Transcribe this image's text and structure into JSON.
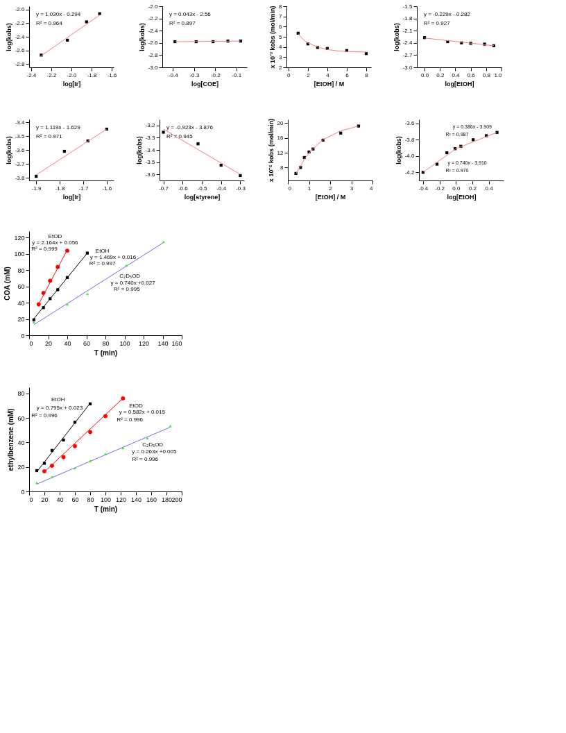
{
  "chart_data": [
    {
      "type": "scatter",
      "xlabel": "log[Ir]",
      "ylabel": "log(kobs)",
      "xlim": [
        -2.42,
        -1.58
      ],
      "ylim": [
        -2.85,
        -1.95
      ],
      "xticks": [
        -2.4,
        -2.2,
        {
          "value": -2,
          "label": "-2.0"
        },
        -1.8,
        -1.6
      ],
      "yticks": [
        -2.8,
        -2.6,
        -2.4,
        -2.2,
        {
          "value": -2,
          "label": "-2.0"
        }
      ],
      "annotations": [
        "y = 1.030x - 0.294",
        "R² = 0.964"
      ],
      "series": [
        {
          "marker": "square",
          "color": "#000000",
          "x": [
            -2.3,
            -2.04,
            -1.85,
            -1.72
          ],
          "values": [
            -2.67,
            -2.45,
            -2.18,
            -2.06
          ]
        },
        {
          "type": "line",
          "color": "#f08080",
          "x": [
            -2.31,
            -1.71
          ],
          "values": [
            -2.69,
            -2.07
          ]
        }
      ]
    },
    {
      "type": "scatter",
      "xlabel": "log[COE]",
      "ylabel": "log(kobs)",
      "xlim": [
        -0.45,
        -0.05
      ],
      "ylim": [
        -3,
        -2
      ],
      "xticks": [
        -0.4,
        -0.3,
        -0.2,
        -0.1
      ],
      "yticks": [
        {
          "value": -3,
          "label": "-3.0"
        },
        -2.8,
        -2.6,
        -2.4,
        -2.2,
        {
          "value": -2,
          "label": "-2.0"
        }
      ],
      "annotations": [
        "y = 0.043x - 2.56",
        "R² = 0.897"
      ],
      "series": [
        {
          "marker": "square",
          "color": "#000000",
          "x": [
            -0.39,
            -0.29,
            -0.21,
            -0.14,
            -0.08
          ],
          "values": [
            -2.58,
            -2.58,
            -2.58,
            -2.57,
            -2.57
          ]
        },
        {
          "type": "line",
          "color": "#f08080",
          "x": [
            -0.39,
            -0.08
          ],
          "values": [
            -2.58,
            -2.57
          ]
        }
      ]
    },
    {
      "type": "scatter",
      "xlabel": "[EtOH] / M",
      "ylabel": "x 10⁻³ kobs (mol/min)",
      "xlim": [
        -0.2,
        8.5
      ],
      "ylim": [
        2,
        8
      ],
      "xticks": [
        0,
        2,
        4,
        6,
        8
      ],
      "yticks": [
        2,
        3,
        4,
        5,
        6,
        7,
        8
      ],
      "series": [
        {
          "marker": "square",
          "color": "#000000",
          "x": [
            1,
            2,
            3,
            4,
            6,
            8
          ],
          "values": [
            5.35,
            4.3,
            3.95,
            3.85,
            3.65,
            3.35
          ]
        },
        {
          "type": "line",
          "color": "#f08080",
          "x": [
            1,
            1.5,
            2,
            3,
            4,
            5,
            6,
            8
          ],
          "values": [
            5.3,
            4.75,
            4.4,
            4.0,
            3.75,
            3.62,
            3.56,
            3.5
          ]
        }
      ]
    },
    {
      "type": "scatter",
      "xlabel": "log[EtOH]",
      "ylabel": "log(kobs)",
      "xlim": [
        -0.1,
        1
      ],
      "ylim": [
        -3,
        -1.5
      ],
      "xticks": [
        {
          "value": 0,
          "label": "0.0"
        },
        0.2,
        0.4,
        0.6,
        0.8,
        {
          "value": 1,
          "label": "1.0"
        }
      ],
      "yticks": [
        {
          "value": -3,
          "label": "-3.0"
        },
        -2.7,
        -2.4,
        -2.1,
        -1.8,
        -1.5
      ],
      "annotations": [
        "y = -0.229x - 0.282",
        "R² = 0.927"
      ],
      "series": [
        {
          "marker": "square",
          "color": "#000000",
          "x": [
            0,
            0.3,
            0.48,
            0.6,
            0.78,
            0.9
          ],
          "values": [
            -2.27,
            -2.37,
            -2.4,
            -2.41,
            -2.43,
            -2.47
          ]
        },
        {
          "type": "line",
          "color": "#f08080",
          "x": [
            0,
            0.9
          ],
          "values": [
            -2.28,
            -2.47
          ]
        }
      ]
    },
    {
      "type": "scatter",
      "xlabel": "log[Ir]",
      "ylabel": "log(kobs)",
      "xlim": [
        -1.93,
        -1.57
      ],
      "ylim": [
        -3.82,
        -3.38
      ],
      "xticks": [
        -1.9,
        -1.8,
        -1.7,
        -1.6
      ],
      "yticks": [
        -3.8,
        -3.7,
        -3.6,
        -3.5,
        -3.4
      ],
      "annotations": [
        "y = 1.119x - 1.629",
        "R² = 0.971"
      ],
      "series": [
        {
          "marker": "square",
          "color": "#000000",
          "x": [
            -1.9,
            -1.78,
            -1.68,
            -1.6
          ],
          "values": [
            -3.79,
            -3.61,
            -3.535,
            -3.45
          ]
        },
        {
          "type": "line",
          "color": "#f08080",
          "x": [
            -1.9,
            -1.6
          ],
          "values": [
            -3.78,
            -3.45
          ]
        }
      ]
    },
    {
      "type": "scatter",
      "xlabel": "log[styrene]",
      "ylabel": "log(kobs)",
      "xlim": [
        -0.72,
        -0.28
      ],
      "ylim": [
        -3.65,
        -3.15
      ],
      "xticks": [
        -0.7,
        -0.6,
        -0.5,
        -0.4,
        -0.3
      ],
      "yticks": [
        -3.6,
        -3.5,
        -3.4,
        -3.3,
        -3.2
      ],
      "annotations": [
        "y = -0.923x - 3.876",
        "R² = 0.945"
      ],
      "series": [
        {
          "marker": "square",
          "color": "#000000",
          "x": [
            -0.7,
            -0.52,
            -0.4,
            -0.3
          ],
          "values": [
            -3.255,
            -3.35,
            -3.525,
            -3.61
          ]
        },
        {
          "type": "line",
          "color": "#f08080",
          "x": [
            -0.7,
            -0.3
          ],
          "values": [
            -3.23,
            -3.6
          ]
        }
      ]
    },
    {
      "type": "scatter",
      "xlabel": "[EtOH] / M",
      "ylabel": "x 10⁻⁵ kobs (mol/min)",
      "xlim": [
        0,
        4
      ],
      "ylim": [
        4.5,
        21
      ],
      "xticks": [
        0,
        1,
        2,
        3,
        4
      ],
      "yticks": [
        8,
        12,
        16,
        20
      ],
      "series": [
        {
          "marker": "square",
          "color": "#000000",
          "x": [
            0.38,
            0.6,
            0.78,
            1.0,
            1.19,
            1.66,
            2.5,
            3.34
          ],
          "values": [
            6.4,
            8.0,
            10.7,
            12.2,
            13.0,
            15.4,
            17.3,
            19.2
          ]
        },
        {
          "type": "line",
          "color": "#f08080",
          "x": [
            0.38,
            0.6,
            0.78,
            1.0,
            1.19,
            1.66,
            2.5,
            3.34
          ],
          "values": [
            6.3,
            8.4,
            10.2,
            11.9,
            13.1,
            15.5,
            17.9,
            19.2
          ]
        }
      ]
    },
    {
      "type": "scatter",
      "xlabel": "log[EtOH]",
      "ylabel": "log(kobs)",
      "xlim": [
        -0.45,
        0.58
      ],
      "ylim": [
        -4.3,
        -3.55
      ],
      "xticks": [
        -0.4,
        -0.2,
        {
          "value": 0,
          "label": "0.0"
        },
        0.2,
        0.4
      ],
      "yticks": [
        -4.2,
        {
          "value": -4,
          "label": "-4.0"
        },
        -3.8,
        -3.6
      ],
      "annotations": [
        "y = 0.386x - 3.909",
        "R² = 0.987",
        "y = 0.740x - 3.910",
        "R² = 0.970"
      ],
      "series": [
        {
          "marker": "square",
          "color": "#000000",
          "x": [
            -0.4,
            -0.23,
            -0.11,
            -0.01,
            0.06,
            0.21,
            0.37,
            0.5
          ],
          "values": [
            -4.2,
            -4.1,
            -3.96,
            -3.91,
            -3.88,
            -3.8,
            -3.75,
            -3.71
          ]
        },
        {
          "type": "line",
          "color": "#f08080",
          "x": [
            -0.4,
            0
          ],
          "values": [
            -4.2,
            -3.91
          ]
        },
        {
          "type": "line",
          "color": "#f08080",
          "x": [
            0,
            0.5
          ],
          "values": [
            -3.91,
            -3.71
          ]
        }
      ]
    },
    {
      "type": "scatter",
      "xlabel": "T (min)",
      "ylabel": "COA (mM)",
      "xlim": [
        0,
        160
      ],
      "ylim": [
        0,
        128
      ],
      "xticks": [
        0,
        20,
        40,
        60,
        80,
        100,
        120,
        140,
        160
      ],
      "yticks": [
        0,
        20,
        40,
        60,
        80,
        100,
        120
      ],
      "annotations": [
        "EtOD",
        "y = 2.164x + 0.056",
        "R² = 0.999",
        "EtOH",
        "y = 1.469x + 0.016",
        "R² = 0.997",
        "C₂D₅OD",
        "y = 0.740x +0.027",
        "R² = 0.995"
      ],
      "series": [
        {
          "type": "line",
          "color": "#ff0000",
          "x": [
            9,
            40
          ],
          "values": [
            36,
            105
          ]
        },
        {
          "type": "line",
          "color": "#000000",
          "x": [
            4,
            61
          ],
          "values": [
            19,
            101
          ]
        },
        {
          "type": "line",
          "color": "#7070e0",
          "x": [
            5,
            141
          ],
          "values": [
            13,
            114
          ]
        },
        {
          "marker": "circle",
          "color": "#ff0000",
          "x": [
            10,
            15,
            22,
            30,
            40
          ],
          "values": [
            38,
            52,
            67,
            84,
            104
          ]
        },
        {
          "marker": "square",
          "color": "#000000",
          "x": [
            5,
            15,
            22,
            30,
            40,
            61
          ],
          "values": [
            19,
            34,
            45,
            56,
            71,
            101
          ]
        },
        {
          "marker": "triangle",
          "color": "#33ee33",
          "x": [
            5,
            40,
            61,
            102,
            141
          ],
          "values": [
            16,
            38,
            51,
            86,
            115
          ]
        }
      ]
    },
    {
      "type": "scatter",
      "xlabel": "T (min)",
      "ylabel": "ethylbenzene (mM)",
      "xlim": [
        0,
        200
      ],
      "ylim": [
        0,
        85
      ],
      "xticks": [
        0,
        20,
        40,
        60,
        80,
        100,
        120,
        140,
        160,
        180,
        200
      ],
      "yticks": [
        0,
        20,
        40,
        60,
        80
      ],
      "annotations": [
        "EtOH",
        "y = 0.795x + 0.023",
        "R² = 0.996",
        "EtOD",
        "y = 0.582x + 0.015",
        "R² = 0.996",
        "C₂D₅OD",
        "y = 0.263x +0.005",
        "R² = 0.996"
      ],
      "series": [
        {
          "type": "line",
          "color": "#000000",
          "x": [
            10,
            80
          ],
          "values": [
            16,
            72
          ]
        },
        {
          "type": "line",
          "color": "#ff0000",
          "x": [
            20,
            123
          ],
          "values": [
            16,
            76
          ]
        },
        {
          "type": "line",
          "color": "#7070e0",
          "x": [
            10,
            185
          ],
          "values": [
            6,
            52.5
          ]
        },
        {
          "marker": "square",
          "color": "#000000",
          "x": [
            10,
            20,
            30,
            45,
            60,
            80
          ],
          "values": [
            17,
            23,
            33.5,
            42,
            56.5,
            71.5
          ]
        },
        {
          "marker": "circle",
          "color": "#ff0000",
          "x": [
            20,
            30,
            45,
            60,
            80,
            100,
            123
          ],
          "values": [
            16.5,
            21,
            28,
            37,
            48.5,
            61.5,
            76
          ]
        },
        {
          "marker": "triangle",
          "color": "#33ee33",
          "x": [
            10,
            30,
            60,
            80,
            100,
            123,
            155,
            185
          ],
          "values": [
            7,
            12,
            19,
            25,
            30.5,
            35.5,
            43.5,
            53.5
          ]
        }
      ]
    }
  ]
}
